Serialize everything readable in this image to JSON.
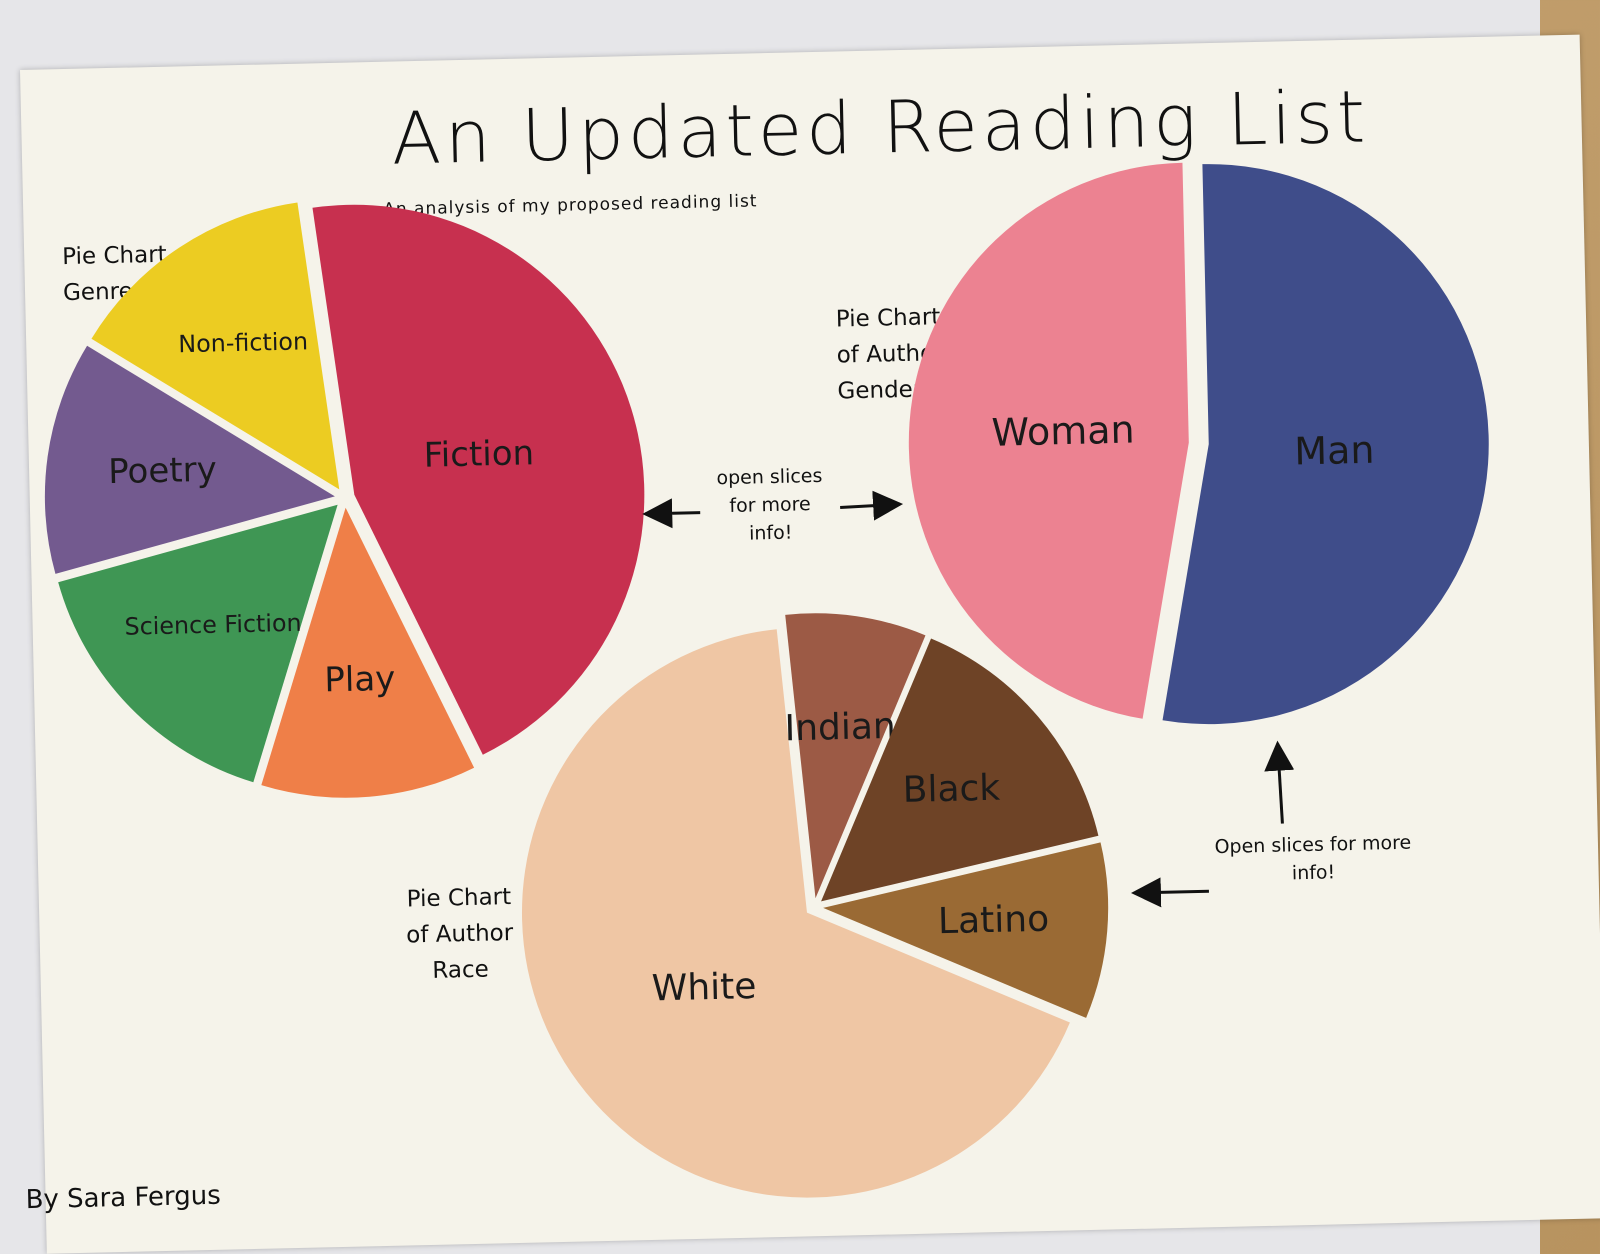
{
  "poster": {
    "title": "An Updated Reading List",
    "subtitle": "An analysis of my proposed reading list",
    "author": "By Sara Fergus",
    "callouts": [
      "open slices for more info!",
      "Open slices for more info!"
    ]
  },
  "chart_data": [
    {
      "type": "pie",
      "title": "Pie Chart of Genre",
      "labels": [
        "Fiction",
        "Play",
        "Science Fiction",
        "Poetry",
        "Non-fiction"
      ],
      "values": [
        45,
        12,
        16,
        13,
        14
      ],
      "colors": [
        "#c7304f",
        "#ef7f48",
        "#3f9654",
        "#735a8f",
        "#eccc22"
      ]
    },
    {
      "type": "pie",
      "title": "Pie Chart of Author Gender",
      "labels": [
        "Man",
        "Woman"
      ],
      "values": [
        53,
        47
      ],
      "colors": [
        "#3f4d8a",
        "#ec8291"
      ]
    },
    {
      "type": "pie",
      "title": "Pie Chart of Author Race",
      "labels": [
        "White",
        "Indian",
        "Black",
        "Latino"
      ],
      "values": [
        67,
        8,
        15,
        10
      ],
      "colors": [
        "#efc6a4",
        "#9c5a45",
        "#6e4326",
        "#9a6a34"
      ]
    }
  ]
}
